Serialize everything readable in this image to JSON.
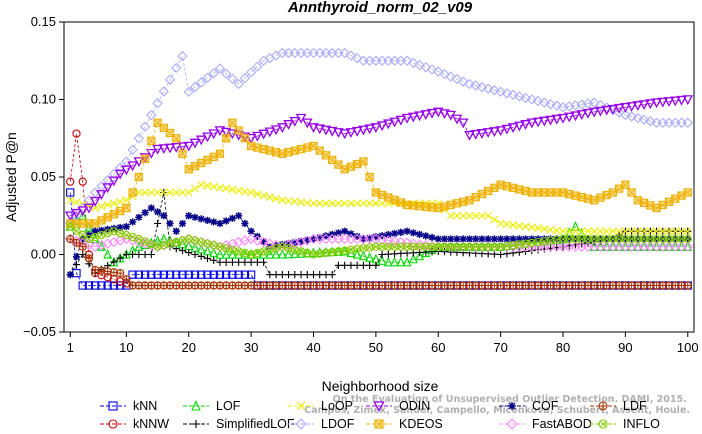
{
  "chart_data": {
    "type": "line",
    "title": "Annthyroid_norm_02_v09",
    "xlabel": "Neighborhood size",
    "ylabel": "Adjusted P@n",
    "xlim": [
      0,
      101
    ],
    "ylim": [
      -0.05,
      0.15
    ],
    "xticks": [
      1,
      10,
      20,
      30,
      40,
      50,
      60,
      70,
      80,
      90,
      100
    ],
    "yticks": [
      -0.05,
      0.0,
      0.05,
      0.1,
      0.15
    ],
    "ytick_labels": [
      "−0.05",
      "0.00",
      "0.05",
      "0.10",
      "0.15"
    ],
    "legend_position": "bottom",
    "watermark": "Campos, Zimek, Sander, Campello, Micenkova, Schubert, Assent, Houle. On the Evaluation of Unsupervised Outlier Detection. DAMI, 2015.",
    "series": [
      {
        "name": "kNN",
        "color": "#0000ee",
        "marker": "square",
        "points": [
          [
            1,
            0.04
          ],
          [
            2,
            -0.012
          ],
          [
            3,
            -0.02
          ],
          [
            10,
            -0.02
          ],
          [
            11,
            -0.013
          ],
          [
            30,
            -0.013
          ],
          [
            31,
            -0.02
          ],
          [
            100,
            -0.02
          ]
        ]
      },
      {
        "name": "kNNW",
        "color": "#cc0000",
        "marker": "circle",
        "points": [
          [
            1,
            0.047
          ],
          [
            2,
            0.078
          ],
          [
            3,
            0.047
          ],
          [
            4,
            0.0
          ],
          [
            5,
            -0.012
          ],
          [
            11,
            -0.02
          ],
          [
            100,
            -0.02
          ]
        ]
      },
      {
        "name": "LOF",
        "color": "#00dd00",
        "marker": "triangle-up",
        "points": [
          [
            1,
            0.018
          ],
          [
            3,
            0.025
          ],
          [
            5,
            0.01
          ],
          [
            8,
            -0.005
          ],
          [
            12,
            0.005
          ],
          [
            16,
            0.01
          ],
          [
            25,
            0.0
          ],
          [
            35,
            0.0
          ],
          [
            45,
            0.002
          ],
          [
            52,
            -0.005
          ],
          [
            55,
            -0.005
          ],
          [
            60,
            0.005
          ],
          [
            70,
            0.005
          ],
          [
            80,
            0.01
          ],
          [
            82,
            0.018
          ],
          [
            85,
            0.005
          ],
          [
            90,
            0.005
          ],
          [
            100,
            0.005
          ]
        ]
      },
      {
        "name": "SimplifiedLOF",
        "color": "#000000",
        "marker": "plus",
        "points": [
          [
            1,
            -0.013
          ],
          [
            3,
            0.0
          ],
          [
            5,
            -0.012
          ],
          [
            10,
            0.0
          ],
          [
            14,
            0.0
          ],
          [
            16,
            0.04
          ],
          [
            17,
            0.005
          ],
          [
            25,
            -0.005
          ],
          [
            32,
            -0.005
          ],
          [
            33,
            -0.013
          ],
          [
            43,
            -0.013
          ],
          [
            44,
            -0.007
          ],
          [
            50,
            -0.007
          ],
          [
            51,
            0.0
          ],
          [
            60,
            0.002
          ],
          [
            70,
            0.0
          ],
          [
            80,
            0.005
          ],
          [
            88,
            0.01
          ],
          [
            90,
            0.015
          ],
          [
            100,
            0.015
          ]
        ]
      },
      {
        "name": "LoOP",
        "color": "#eeee00",
        "marker": "cross",
        "points": [
          [
            1,
            0.035
          ],
          [
            5,
            0.03
          ],
          [
            10,
            0.035
          ],
          [
            12,
            0.04
          ],
          [
            20,
            0.04
          ],
          [
            22,
            0.045
          ],
          [
            30,
            0.04
          ],
          [
            35,
            0.035
          ],
          [
            40,
            0.033
          ],
          [
            60,
            0.033
          ],
          [
            62,
            0.025
          ],
          [
            68,
            0.025
          ],
          [
            70,
            0.02
          ],
          [
            80,
            0.015
          ],
          [
            85,
            0.015
          ],
          [
            90,
            0.015
          ],
          [
            100,
            0.015
          ]
        ]
      },
      {
        "name": "LDOF",
        "color": "#aaaaff",
        "marker": "diamond",
        "points": [
          [
            1,
            0.02
          ],
          [
            5,
            0.04
          ],
          [
            10,
            0.06
          ],
          [
            14,
            0.09
          ],
          [
            19,
            0.128
          ],
          [
            20,
            0.105
          ],
          [
            25,
            0.12
          ],
          [
            28,
            0.11
          ],
          [
            32,
            0.125
          ],
          [
            35,
            0.13
          ],
          [
            45,
            0.13
          ],
          [
            48,
            0.125
          ],
          [
            55,
            0.125
          ],
          [
            60,
            0.118
          ],
          [
            65,
            0.11
          ],
          [
            70,
            0.105
          ],
          [
            75,
            0.1
          ],
          [
            80,
            0.095
          ],
          [
            85,
            0.098
          ],
          [
            90,
            0.09
          ],
          [
            95,
            0.085
          ],
          [
            100,
            0.085
          ]
        ]
      },
      {
        "name": "ODIN",
        "color": "#9900ee",
        "marker": "triangle-down",
        "points": [
          [
            1,
            0.025
          ],
          [
            4,
            0.03
          ],
          [
            9,
            0.052
          ],
          [
            12,
            0.06
          ],
          [
            15,
            0.068
          ],
          [
            20,
            0.07
          ],
          [
            25,
            0.08
          ],
          [
            30,
            0.075
          ],
          [
            35,
            0.082
          ],
          [
            38,
            0.088
          ],
          [
            40,
            0.082
          ],
          [
            45,
            0.078
          ],
          [
            50,
            0.082
          ],
          [
            55,
            0.088
          ],
          [
            60,
            0.092
          ],
          [
            62,
            0.09
          ],
          [
            64,
            0.085
          ],
          [
            65,
            0.077
          ],
          [
            70,
            0.08
          ],
          [
            75,
            0.085
          ],
          [
            80,
            0.088
          ],
          [
            85,
            0.092
          ],
          [
            90,
            0.095
          ],
          [
            95,
            0.098
          ],
          [
            100,
            0.1
          ]
        ]
      },
      {
        "name": "KDEOS",
        "color": "#f0b000",
        "marker": "square-x",
        "points": [
          [
            1,
            0.02
          ],
          [
            5,
            0.02
          ],
          [
            10,
            0.03
          ],
          [
            12,
            0.05
          ],
          [
            15,
            0.085
          ],
          [
            18,
            0.075
          ],
          [
            20,
            0.055
          ],
          [
            25,
            0.065
          ],
          [
            27,
            0.085
          ],
          [
            30,
            0.07
          ],
          [
            35,
            0.065
          ],
          [
            40,
            0.07
          ],
          [
            45,
            0.055
          ],
          [
            48,
            0.06
          ],
          [
            50,
            0.04
          ],
          [
            55,
            0.032
          ],
          [
            60,
            0.03
          ],
          [
            65,
            0.035
          ],
          [
            70,
            0.045
          ],
          [
            75,
            0.04
          ],
          [
            80,
            0.04
          ],
          [
            85,
            0.035
          ],
          [
            88,
            0.04
          ],
          [
            90,
            0.045
          ],
          [
            92,
            0.035
          ],
          [
            95,
            0.03
          ],
          [
            100,
            0.04
          ]
        ]
      },
      {
        "name": "COF",
        "color": "#000088",
        "marker": "asterisk",
        "points": [
          [
            1,
            -0.013
          ],
          [
            3,
            0.01
          ],
          [
            5,
            0.015
          ],
          [
            10,
            0.018
          ],
          [
            14,
            0.03
          ],
          [
            16,
            0.025
          ],
          [
            18,
            0.015
          ],
          [
            20,
            0.025
          ],
          [
            25,
            0.02
          ],
          [
            28,
            0.025
          ],
          [
            30,
            0.015
          ],
          [
            33,
            0.005
          ],
          [
            40,
            0.01
          ],
          [
            45,
            0.015
          ],
          [
            48,
            0.01
          ],
          [
            55,
            0.015
          ],
          [
            60,
            0.01
          ],
          [
            70,
            0.01
          ],
          [
            80,
            0.01
          ],
          [
            90,
            0.01
          ],
          [
            100,
            0.01
          ]
        ]
      },
      {
        "name": "FastABOD",
        "color": "#ff88ff",
        "marker": "diamond",
        "points": [
          [
            1,
            0.01
          ],
          [
            5,
            0.005
          ],
          [
            10,
            0.01
          ],
          [
            15,
            0.005
          ],
          [
            20,
            0.01
          ],
          [
            25,
            0.005
          ],
          [
            30,
            0.01
          ],
          [
            35,
            0.005
          ],
          [
            40,
            0.01
          ],
          [
            50,
            0.01
          ],
          [
            60,
            0.005
          ],
          [
            70,
            0.005
          ],
          [
            80,
            0.005
          ],
          [
            90,
            0.005
          ],
          [
            100,
            0.005
          ]
        ]
      },
      {
        "name": "LDF",
        "color": "#aa3300",
        "marker": "circle-plus",
        "points": [
          [
            1,
            0.01
          ],
          [
            3,
            0.005
          ],
          [
            5,
            -0.01
          ],
          [
            9,
            -0.012
          ],
          [
            11,
            -0.02
          ],
          [
            13,
            -0.02
          ],
          [
            100,
            -0.02
          ]
        ]
      },
      {
        "name": "INFLO",
        "color": "#88cc00",
        "marker": "circle-x",
        "points": [
          [
            1,
            0.018
          ],
          [
            4,
            0.01
          ],
          [
            8,
            0.015
          ],
          [
            12,
            0.01
          ],
          [
            15,
            0.005
          ],
          [
            20,
            0.01
          ],
          [
            25,
            0.005
          ],
          [
            30,
            0.0
          ],
          [
            35,
            0.005
          ],
          [
            40,
            0.0
          ],
          [
            50,
            0.005
          ],
          [
            60,
            0.005
          ],
          [
            70,
            0.005
          ],
          [
            80,
            0.01
          ],
          [
            90,
            0.01
          ],
          [
            100,
            0.01
          ]
        ]
      }
    ]
  }
}
